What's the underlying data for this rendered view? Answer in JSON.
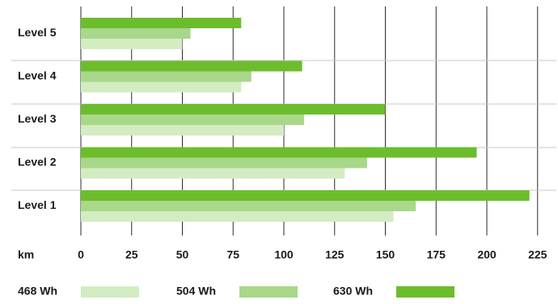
{
  "chart_data": {
    "type": "bar",
    "orientation": "horizontal",
    "categories": [
      "Level 5",
      "Level 4",
      "Level 3",
      "Level 2",
      "Level 1"
    ],
    "series": [
      {
        "name": "630 Wh",
        "values": [
          79,
          109,
          150,
          195,
          221
        ],
        "color": "#6cbd2c"
      },
      {
        "name": "504 Wh",
        "values": [
          54,
          84,
          110,
          141,
          165
        ],
        "color": "#a9d88a"
      },
      {
        "name": "468 Wh",
        "values": [
          50,
          79,
          100,
          130,
          154
        ],
        "color": "#d3ecc2"
      }
    ],
    "xlabel": "km",
    "x_ticks": [
      0,
      25,
      50,
      75,
      100,
      125,
      150,
      175,
      200,
      225
    ],
    "xlim": [
      0,
      235
    ],
    "grid": true,
    "legend_position": "bottom",
    "legend_order": [
      "468 Wh",
      "504 Wh",
      "630 Wh"
    ]
  }
}
